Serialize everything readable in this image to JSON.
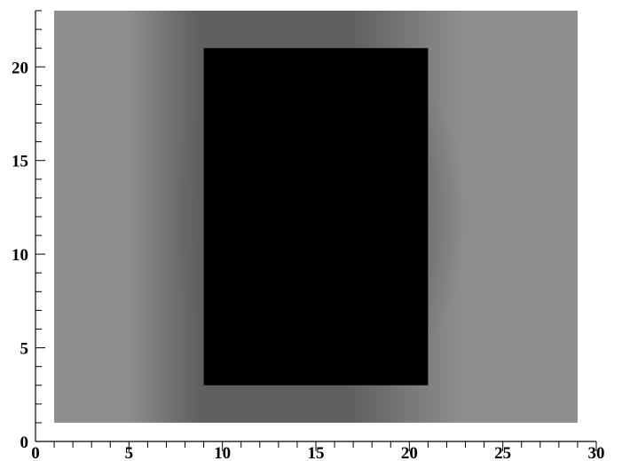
{
  "chart_data": {
    "type": "heatmap",
    "title": "",
    "xlabel": "",
    "ylabel": "",
    "xlim": [
      0,
      30
    ],
    "ylim": [
      0,
      23
    ],
    "x_ticks": [
      0,
      5,
      10,
      15,
      20,
      25,
      30
    ],
    "y_ticks": [
      0,
      5,
      10,
      15,
      20
    ],
    "x_minor_step": 1,
    "y_minor_step": 1,
    "field_extent": {
      "x": [
        1,
        29
      ],
      "y": [
        1,
        23
      ]
    },
    "obstacle": {
      "x": [
        9,
        21
      ],
      "y": [
        3,
        21
      ]
    },
    "colors": {
      "field_light": "#8e8e8e",
      "field_dark": "#5f5f5f",
      "obstacle": "#000000"
    },
    "grid": false,
    "legend": "none"
  }
}
